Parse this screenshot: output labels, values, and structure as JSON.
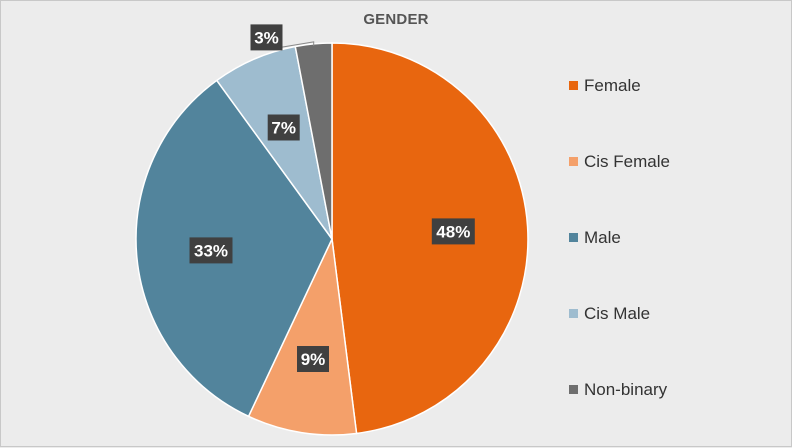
{
  "chart_data": {
    "type": "pie",
    "title": "GENDER",
    "categories": [
      "Female",
      "Cis Female",
      "Male",
      "Cis Male",
      "Non-binary"
    ],
    "values": [
      48,
      9,
      33,
      7,
      3
    ],
    "data_labels": [
      "48%",
      "9%",
      "33%",
      "7%",
      "3%"
    ],
    "colors": [
      "#e8660f",
      "#f4a06a",
      "#52849c",
      "#9ebccf",
      "#6e6e6e"
    ],
    "legend_position": "right",
    "label_style": "white bold text on dark callout boxes",
    "start_angle": "12 o'clock, clockwise"
  }
}
